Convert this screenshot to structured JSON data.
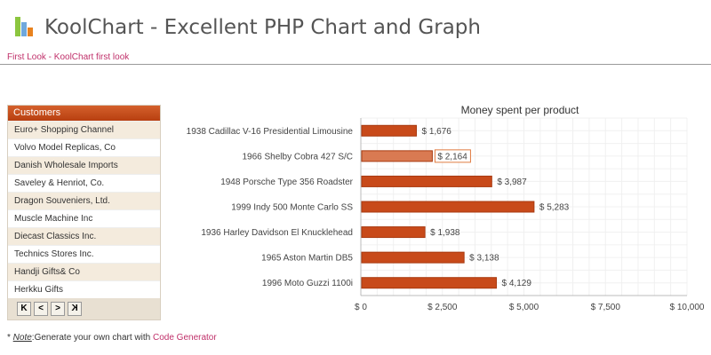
{
  "header": {
    "title": "KoolChart - Excellent PHP Chart and Graph",
    "breadcrumb": "First Look - KoolChart first look"
  },
  "customers": {
    "header": "Customers",
    "rows": [
      "Euro+ Shopping Channel",
      "Volvo Model Replicas, Co",
      "Danish Wholesale Imports",
      "Saveley & Henriot, Co.",
      "Dragon Souveniers, Ltd.",
      "Muscle Machine Inc",
      "Diecast Classics Inc.",
      "Technics Stores Inc.",
      "Handji Gifts& Co",
      "Herkku Gifts"
    ],
    "pager": [
      "K",
      "<",
      ">",
      "K"
    ]
  },
  "footer": {
    "prefix": "* ",
    "note": "Note",
    "middle": ":Generate your own chart with ",
    "link": "Code Generator"
  },
  "chart_data": {
    "type": "bar",
    "orientation": "horizontal",
    "title": "Money spent per product",
    "categories": [
      "1938 Cadillac V-16 Presidential Limousine",
      "1966 Shelby Cobra 427 S/C",
      "1948 Porsche Type 356 Roadster",
      "1999 Indy 500 Monte Carlo SS",
      "1936 Harley Davidson El Knucklehead",
      "1965 Aston Martin DB5",
      "1996 Moto Guzzi 1100i"
    ],
    "values": [
      1676,
      2164,
      3987,
      5283,
      1938,
      3138,
      4129
    ],
    "labels": [
      "$ 1,676",
      "$ 2,164",
      "$ 3,987",
      "$ 5,283",
      "$ 1,938",
      "$ 3,138",
      "$ 4,129"
    ],
    "highlighted_index": 1,
    "xlim": [
      0,
      10000
    ],
    "xticks": [
      "$ 0",
      "$ 2,500",
      "$ 5,000",
      "$ 7,500",
      "$ 10,000"
    ],
    "xtick_values": [
      0,
      2500,
      5000,
      7500,
      10000
    ],
    "grid": true,
    "bar_color": "#c84a1a"
  }
}
